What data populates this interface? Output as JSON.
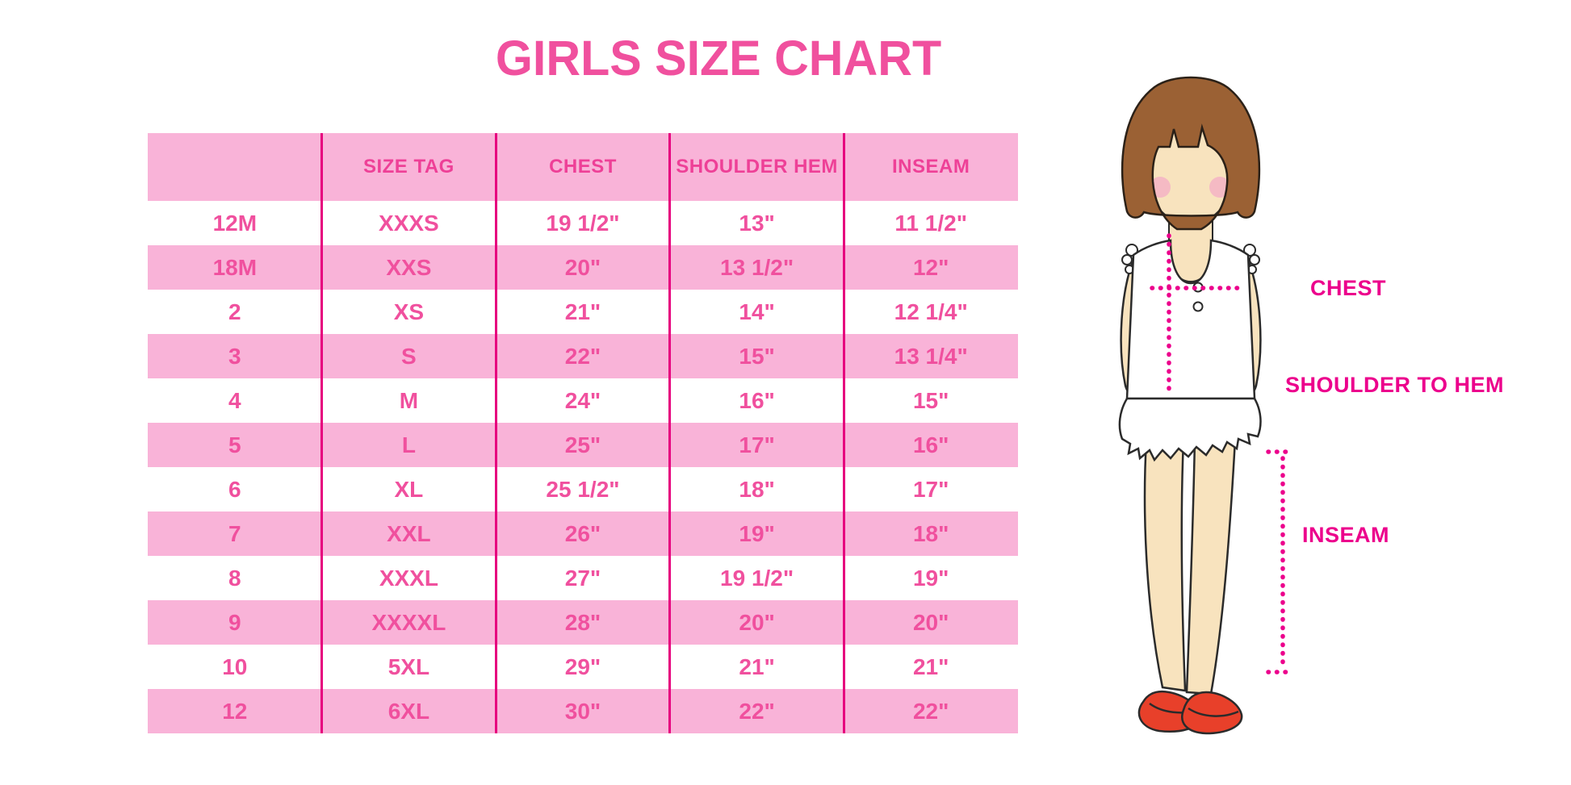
{
  "page_title": "GIRLS SIZE CHART",
  "colors": {
    "title": "#F0509E",
    "header_text": "#EE4097",
    "cell_text": "#F0509E",
    "row_pink": "#F9B3D8",
    "divider": "#E6007E",
    "measure": "#EC008C",
    "hair": "#9B6134",
    "skin": "#F8E3BE",
    "blush": "#F5B3C5",
    "shoe": "#E8402A",
    "outline": "#2b2b2b"
  },
  "chart_data": {
    "type": "table",
    "title": "GIRLS SIZE CHART",
    "columns": [
      "",
      "SIZE TAG",
      "CHEST",
      "SHOULDER HEM",
      "INSEAM"
    ],
    "rows": [
      [
        "12M",
        "XXXS",
        "19 1/2\"",
        "13\"",
        "11 1/2\""
      ],
      [
        "18M",
        "XXS",
        "20\"",
        "13 1/2\"",
        "12\""
      ],
      [
        "2",
        "XS",
        "21\"",
        "14\"",
        "12 1/4\""
      ],
      [
        "3",
        "S",
        "22\"",
        "15\"",
        "13 1/4\""
      ],
      [
        "4",
        "M",
        "24\"",
        "16\"",
        "15\""
      ],
      [
        "5",
        "L",
        "25\"",
        "17\"",
        "16\""
      ],
      [
        "6",
        "XL",
        "25 1/2\"",
        "18\"",
        "17\""
      ],
      [
        "7",
        "XXL",
        "26\"",
        "19\"",
        "18\""
      ],
      [
        "8",
        "XXXL",
        "27\"",
        "19 1/2\"",
        "19\""
      ],
      [
        "9",
        "XXXXL",
        "28\"",
        "20\"",
        "20\""
      ],
      [
        "10",
        "5XL",
        "29\"",
        "21\"",
        "21\""
      ],
      [
        "12",
        "6XL",
        "30\"",
        "22\"",
        "22\""
      ]
    ],
    "row_striping": [
      "white",
      "pink"
    ],
    "legend_position": "none",
    "grid": "column-dividers-only"
  },
  "figure": {
    "chest_label": "CHEST",
    "shoulder_label": "SHOULDER TO HEM",
    "inseam_label": "INSEAM"
  }
}
